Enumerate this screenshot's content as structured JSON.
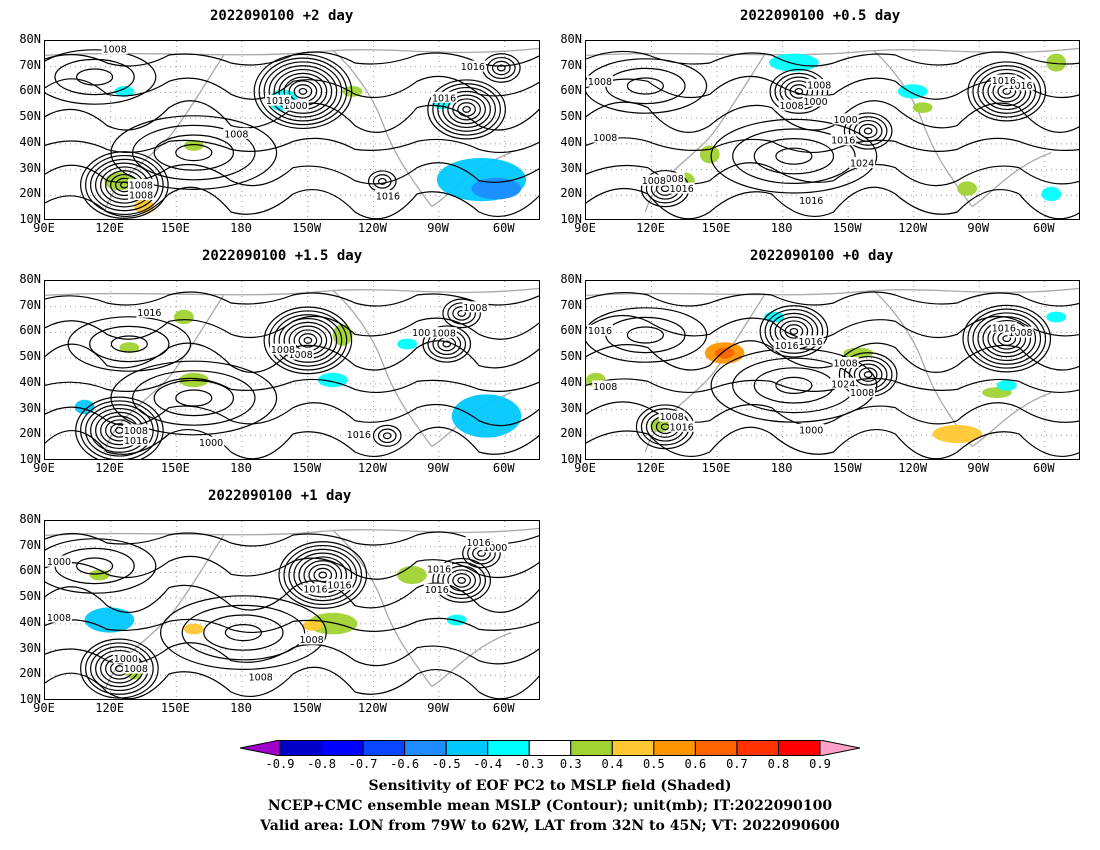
{
  "panels": [
    {
      "title": "2022090100  +2 day",
      "x_ticks": [
        "90E",
        "120E",
        "150E",
        "180",
        "150W",
        "120W",
        "90W",
        "60W"
      ],
      "y_ticks": [
        "80N",
        "70N",
        "60N",
        "50N",
        "40N",
        "30N",
        "20N",
        "10N"
      ],
      "contour_labels": [
        "1008",
        "1000",
        "1016",
        "1008",
        "1016",
        "1016",
        "1008",
        "1008",
        "1016"
      ]
    },
    {
      "title": "2022090100  +0.5 day",
      "x_ticks": [
        "90E",
        "120E",
        "150E",
        "180",
        "150W",
        "120W",
        "90W",
        "60W"
      ],
      "y_ticks": [
        "80N",
        "70N",
        "60N",
        "50N",
        "40N",
        "30N",
        "20N",
        "10N"
      ],
      "contour_labels": [
        "1016",
        "1008",
        "1000",
        "1016",
        "1016",
        "1008",
        "1008",
        "1000",
        "1016",
        "1016",
        "1024",
        "1008",
        "1008",
        "1008"
      ]
    },
    {
      "title": "2022090100  +1.5 day",
      "x_ticks": [
        "90E",
        "120E",
        "150E",
        "180",
        "150W",
        "120W",
        "90W",
        "60W"
      ],
      "y_ticks": [
        "80N",
        "70N",
        "60N",
        "50N",
        "40N",
        "30N",
        "20N",
        "10N"
      ],
      "contour_labels": [
        "1008",
        "1008",
        "1000",
        "1008",
        "1000",
        "1016",
        "1016",
        "1016",
        "1008",
        "1008"
      ]
    },
    {
      "title": "2022090100  +0 day",
      "x_ticks": [
        "90E",
        "120E",
        "150E",
        "180",
        "150W",
        "120W",
        "90W",
        "60W"
      ],
      "y_ticks": [
        "80N",
        "70N",
        "60N",
        "50N",
        "40N",
        "30N",
        "20N",
        "10N"
      ],
      "contour_labels": [
        "1016",
        "1016",
        "1008",
        "1008",
        "1000",
        "1016",
        "1008",
        "1016",
        "1024",
        "1016",
        "1008",
        "1008"
      ]
    },
    {
      "title": "2022090100  +1 day",
      "x_ticks": [
        "90E",
        "120E",
        "150E",
        "180",
        "150W",
        "120W",
        "90W",
        "60W"
      ],
      "y_ticks": [
        "80N",
        "70N",
        "60N",
        "50N",
        "40N",
        "30N",
        "20N",
        "10N"
      ],
      "contour_labels": [
        "1008",
        "1016",
        "1016",
        "1000",
        "1008",
        "1000",
        "1000",
        "1016",
        "1016",
        "1016",
        "1008",
        "1008"
      ]
    }
  ],
  "colorbar": {
    "labels": [
      "-0.9",
      "-0.8",
      "-0.7",
      "-0.6",
      "-0.5",
      "-0.4",
      "-0.3",
      "0.3",
      "0.4",
      "0.5",
      "0.6",
      "0.7",
      "0.8",
      "0.9"
    ],
    "colors": [
      "#a000c8",
      "#0000c8",
      "#0000ff",
      "#0a46ff",
      "#1e8cff",
      "#00c8ff",
      "#00ffff",
      "#ffffff",
      "#a0d232",
      "#ffc832",
      "#ff9600",
      "#ff6400",
      "#ff3200",
      "#ff0000",
      "#ffa0c8"
    ]
  },
  "captions": [
    "Sensitivity of EOF PC2 to MSLP field (Shaded)",
    "NCEP+CMC ensemble mean MSLP (Contour); unit(mb); IT:2022090100",
    "Valid area: LON from 79W to 62W, LAT from 32N to 45N; VT: 2022090600"
  ]
}
